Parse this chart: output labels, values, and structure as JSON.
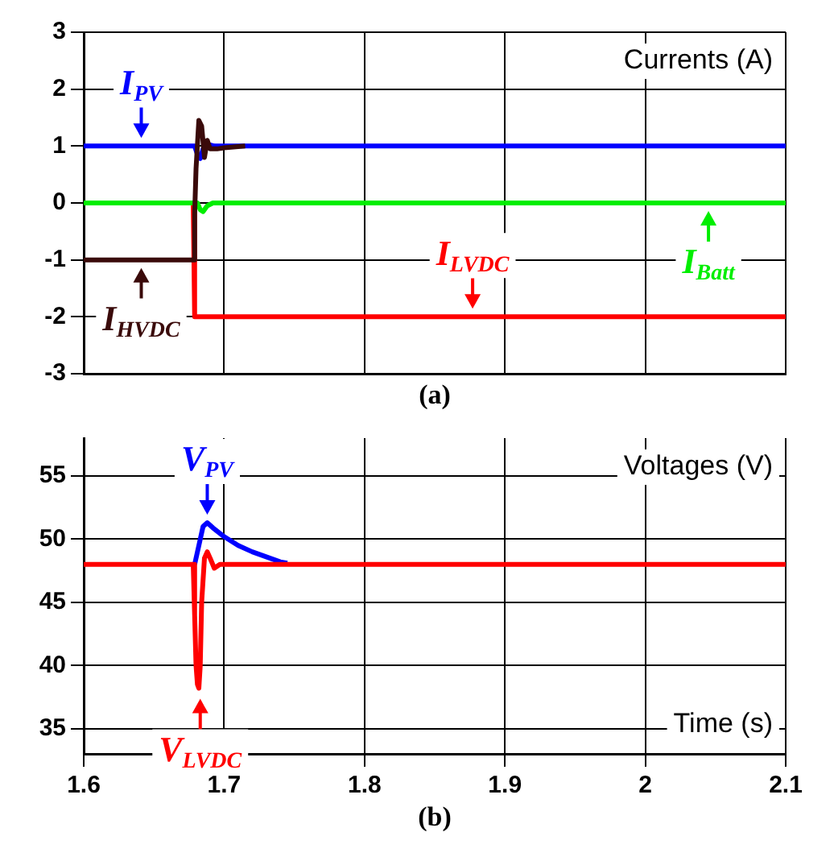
{
  "chart_data": [
    {
      "type": "line",
      "ylabel": "Currents (A)",
      "xlim": [
        1.6,
        2.1
      ],
      "xticks": [
        1.6,
        1.7,
        1.8,
        1.9,
        2,
        2.1
      ],
      "ylim": [
        -3,
        3
      ],
      "yticks": [
        -3,
        -2,
        -1,
        0,
        1,
        2,
        3
      ],
      "grid": true,
      "tick_labels": "y",
      "series": [
        {
          "color": "#ff0000",
          "x": [
            1.6,
            1.678,
            1.679,
            2.1
          ],
          "values": [
            0,
            0,
            -2,
            -2
          ]
        },
        {
          "color": "#00ee00",
          "x": [
            1.6,
            1.681,
            1.683,
            1.685,
            1.688,
            1.692,
            2.1
          ],
          "values": [
            0,
            0,
            -0.12,
            -0.15,
            -0.05,
            0,
            0
          ]
        },
        {
          "color": "#0000ff",
          "x": [
            1.6,
            1.679,
            1.681,
            1.683,
            1.685,
            1.687,
            1.69,
            1.693,
            2.1
          ],
          "values": [
            1,
            1,
            0.85,
            0.78,
            0.95,
            1.05,
            1.02,
            1,
            1
          ]
        },
        {
          "color": "#3a0a0a",
          "x": [
            1.6,
            1.678,
            1.679,
            1.68,
            1.682,
            1.684,
            1.686,
            1.688,
            1.69,
            1.695,
            1.7,
            1.715
          ],
          "values": [
            -1,
            -1,
            -0.2,
            0.6,
            1.45,
            1.35,
            0.8,
            1.1,
            0.95,
            0.95,
            0.97,
            1
          ]
        }
      ],
      "annotations": [
        {
          "text": "I$_{PV}$",
          "x": 1.641,
          "y": 1
        },
        {
          "text": "I$_{HVDC}$",
          "x": 1.641,
          "y": -1
        },
        {
          "text": "I$_{LVDC}$",
          "x": 1.877,
          "y": -2
        },
        {
          "text": "I$_{Batt}$",
          "x": 2.045,
          "y": 0
        },
        "(a)"
      ]
    },
    {
      "type": "line",
      "ylabel": "Voltages (V)",
      "xlabel": "Time (s)",
      "xlim": [
        1.6,
        2.1
      ],
      "xticks": [
        1.6,
        1.7,
        1.8,
        1.9,
        2,
        2.1
      ],
      "ylim": [
        33,
        58
      ],
      "yticks": [
        35,
        40,
        45,
        50,
        55
      ],
      "grid": true,
      "series": [
        {
          "color": "#0000ff",
          "x": [
            1.679,
            1.682,
            1.685,
            1.688,
            1.692,
            1.7,
            1.71,
            1.72,
            1.73,
            1.74,
            1.745
          ],
          "values": [
            48,
            49.5,
            51,
            51.3,
            50.9,
            50.2,
            49.5,
            49,
            48.6,
            48.2,
            48.1
          ]
        },
        {
          "color": "#ff0000",
          "x": [
            1.6,
            1.678,
            1.679,
            1.68,
            1.681,
            1.682,
            1.683,
            1.684,
            1.686,
            1.688,
            1.69,
            1.693,
            1.697,
            2.1
          ],
          "values": [
            48,
            48,
            44,
            40,
            38.5,
            38.2,
            40,
            45,
            48.5,
            49,
            48.5,
            47.7,
            48,
            48
          ]
        }
      ],
      "annotations": [
        {
          "text": "V$_{PV}$",
          "x": 1.688,
          "y": 51.3
        },
        {
          "text": "V$_{LVDC}$",
          "x": 1.683,
          "y": 38
        },
        "(b)"
      ]
    }
  ]
}
